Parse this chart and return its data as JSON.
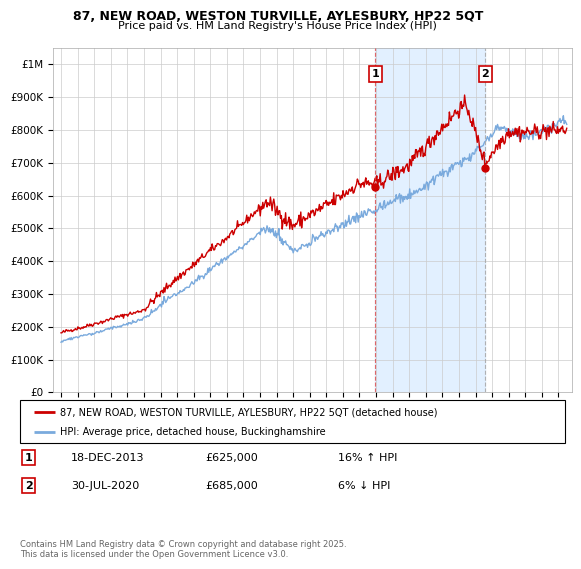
{
  "title_line1": "87, NEW ROAD, WESTON TURVILLE, AYLESBURY, HP22 5QT",
  "title_line2": "Price paid vs. HM Land Registry's House Price Index (HPI)",
  "background_color": "#ffffff",
  "plot_bg_color": "#ffffff",
  "grid_color": "#cccccc",
  "red_color": "#cc0000",
  "blue_color": "#7aaadd",
  "shade_color": "#ddeeff",
  "ylim": [
    0,
    1050000
  ],
  "yticks": [
    0,
    100000,
    200000,
    300000,
    400000,
    500000,
    600000,
    700000,
    800000,
    900000,
    1000000
  ],
  "ytick_labels": [
    "£0",
    "£100K",
    "£200K",
    "£300K",
    "£400K",
    "£500K",
    "£600K",
    "£700K",
    "£800K",
    "£900K",
    "£1M"
  ],
  "sale1_date": 2013.96,
  "sale1_price": 625000,
  "sale2_date": 2020.58,
  "sale2_price": 685000,
  "legend_red": "87, NEW ROAD, WESTON TURVILLE, AYLESBURY, HP22 5QT (detached house)",
  "legend_blue": "HPI: Average price, detached house, Buckinghamshire",
  "table_row1": [
    "1",
    "18-DEC-2013",
    "£625,000",
    "16% ↑ HPI"
  ],
  "table_row2": [
    "2",
    "30-JUL-2020",
    "£685,000",
    "6% ↓ HPI"
  ],
  "footnote": "Contains HM Land Registry data © Crown copyright and database right 2025.\nThis data is licensed under the Open Government Licence v3.0.",
  "xmin": 1994.5,
  "xmax": 2025.8
}
